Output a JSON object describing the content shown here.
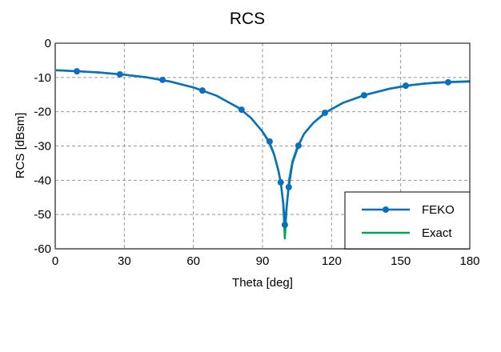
{
  "chart_data": {
    "type": "line",
    "title": "RCS",
    "xlabel": "Theta [deg]",
    "ylabel": "RCS [dBsm]",
    "xlim": [
      0,
      180
    ],
    "ylim": [
      -60,
      0
    ],
    "xticks": [
      0,
      30,
      60,
      90,
      120,
      150,
      180
    ],
    "yticks": [
      0,
      -10,
      -20,
      -30,
      -40,
      -50,
      -60
    ],
    "grid": true,
    "legend_position": "bottom-right",
    "series": [
      {
        "name": "FEKO",
        "color": "#0a6fbf",
        "marker": "circle",
        "line_points": [
          [
            0,
            -7.9
          ],
          [
            10,
            -8.2
          ],
          [
            20,
            -8.6
          ],
          [
            30,
            -9.2
          ],
          [
            40,
            -10.0
          ],
          [
            50,
            -11.2
          ],
          [
            60,
            -12.9
          ],
          [
            70,
            -15.3
          ],
          [
            80,
            -19.0
          ],
          [
            85,
            -21.8
          ],
          [
            90,
            -25.8
          ],
          [
            93,
            -28.8
          ],
          [
            95,
            -32.3
          ],
          [
            97,
            -37.3
          ],
          [
            98,
            -41.0
          ],
          [
            99,
            -46.5
          ],
          [
            99.7,
            -53.0
          ],
          [
            100.5,
            -47.5
          ],
          [
            101.4,
            -42.0
          ],
          [
            103,
            -35.0
          ],
          [
            105.6,
            -29.9
          ],
          [
            108,
            -26.5
          ],
          [
            112,
            -23.3
          ],
          [
            117.1,
            -20.3
          ],
          [
            125,
            -17.4
          ],
          [
            134.1,
            -15.2
          ],
          [
            145,
            -13.3
          ],
          [
            152.2,
            -12.4
          ],
          [
            160,
            -11.8
          ],
          [
            170.6,
            -11.4
          ],
          [
            180,
            -11.2
          ]
        ],
        "markers": [
          [
            9.4,
            -8.2
          ],
          [
            28.1,
            -9.1
          ],
          [
            46.6,
            -10.7
          ],
          [
            63.9,
            -13.8
          ],
          [
            80.9,
            -19.4
          ],
          [
            93.1,
            -28.7
          ],
          [
            97.9,
            -40.6
          ],
          [
            99.7,
            -53.0
          ],
          [
            101.4,
            -42.0
          ],
          [
            105.6,
            -29.9
          ],
          [
            117.1,
            -20.3
          ],
          [
            134.1,
            -15.2
          ],
          [
            152.2,
            -12.4
          ],
          [
            170.6,
            -11.4
          ]
        ]
      },
      {
        "name": "Exact",
        "color": "#00a651",
        "line_points": [
          [
            0,
            -7.9
          ],
          [
            10,
            -8.2
          ],
          [
            20,
            -8.6
          ],
          [
            30,
            -9.2
          ],
          [
            40,
            -10.0
          ],
          [
            50,
            -11.2
          ],
          [
            60,
            -12.9
          ],
          [
            70,
            -15.3
          ],
          [
            80,
            -19.0
          ],
          [
            85,
            -21.8
          ],
          [
            90,
            -25.8
          ],
          [
            93,
            -29.2
          ],
          [
            95,
            -32.5
          ],
          [
            97,
            -37.5
          ],
          [
            98,
            -41.0
          ],
          [
            99,
            -47.0
          ],
          [
            99.7,
            -57.0
          ],
          [
            100.5,
            -48.0
          ],
          [
            101.5,
            -40.0
          ],
          [
            103,
            -34.5
          ],
          [
            105,
            -30.5
          ],
          [
            108,
            -26.5
          ],
          [
            112,
            -23.3
          ],
          [
            118,
            -20.0
          ],
          [
            125,
            -17.4
          ],
          [
            135,
            -15.0
          ],
          [
            145,
            -13.3
          ],
          [
            155,
            -12.2
          ],
          [
            165,
            -11.5
          ],
          [
            175,
            -11.2
          ],
          [
            180,
            -11.1
          ]
        ]
      }
    ]
  }
}
